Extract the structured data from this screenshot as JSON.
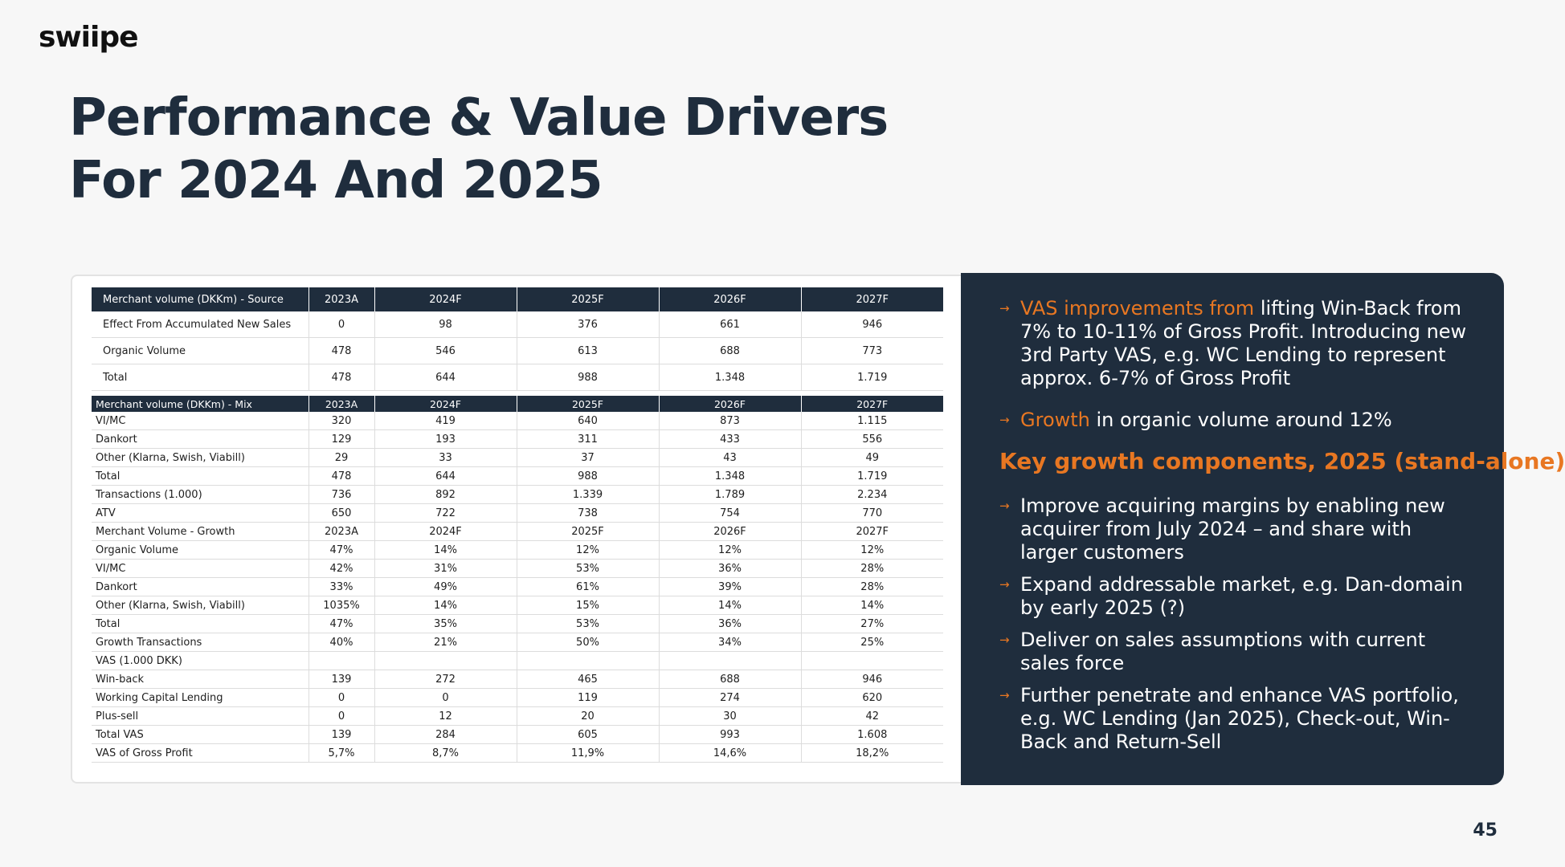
{
  "logo": "swiipe",
  "title": [
    "Performance & Value Drivers",
    "For 2024 And 2025"
  ],
  "table_source": {
    "headers": [
      "Merchant volume (DKKm) - Source",
      "2023A",
      "2024F",
      "2025F",
      "2026F",
      "2027F"
    ],
    "rows": [
      [
        "Effect From Accumulated New Sales",
        "0",
        "98",
        "376",
        "661",
        "946"
      ],
      [
        "Organic Volume",
        "478",
        "546",
        "613",
        "688",
        "773"
      ],
      [
        "Total",
        "478",
        "644",
        "988",
        "1.348",
        "1.719"
      ]
    ]
  },
  "table_mix": {
    "headers": [
      "Merchant volume (DKKm) - Mix",
      "2023A",
      "2024F",
      "2025F",
      "2026F",
      "2027F"
    ],
    "rows": [
      [
        "VI/MC",
        "320",
        "419",
        "640",
        "873",
        "1.115"
      ],
      [
        "Dankort",
        "129",
        "193",
        "311",
        "433",
        "556"
      ],
      [
        "Other (Klarna, Swish, Viabill)",
        "29",
        "33",
        "37",
        "43",
        "49"
      ],
      [
        "Total",
        "478",
        "644",
        "988",
        "1.348",
        "1.719"
      ],
      [
        "Transactions (1.000)",
        "736",
        "892",
        "1.339",
        "1.789",
        "2.234"
      ],
      [
        "ATV",
        "650",
        "722",
        "738",
        "754",
        "770"
      ],
      [
        "Merchant Volume - Growth",
        "2023A",
        "2024F",
        "2025F",
        "2026F",
        "2027F"
      ],
      [
        "Organic Volume",
        "47%",
        "14%",
        "12%",
        "12%",
        "12%"
      ],
      [
        "VI/MC",
        "42%",
        "31%",
        "53%",
        "36%",
        "28%"
      ],
      [
        "Dankort",
        "33%",
        "49%",
        "61%",
        "39%",
        "28%"
      ],
      [
        "Other (Klarna, Swish, Viabill)",
        "1035%",
        "14%",
        "15%",
        "14%",
        "14%"
      ],
      [
        "Total",
        "47%",
        "35%",
        "53%",
        "36%",
        "27%"
      ],
      [
        "Growth Transactions",
        "40%",
        "21%",
        "50%",
        "34%",
        "25%"
      ],
      [
        "VAS (1.000 DKK)",
        "",
        "",
        "",
        "",
        ""
      ],
      [
        "Win-back",
        "139",
        "272",
        "465",
        "688",
        "946"
      ],
      [
        "Working Capital Lending",
        "0",
        "0",
        "119",
        "274",
        "620"
      ],
      [
        "Plus-sell",
        "0",
        "12",
        "20",
        "30",
        "42"
      ],
      [
        "Total VAS",
        "139",
        "284",
        "605",
        "993",
        "1.608"
      ],
      [
        "VAS of Gross Profit",
        "5,7%",
        "8,7%",
        "11,9%",
        "14,6%",
        "18,2%"
      ]
    ]
  },
  "panel": {
    "bullet1": {
      "highlight": "VAS improvements from",
      "text": " lifting Win-Back from 7% to 10-11% of Gross Profit. Introducing new 3rd Party VAS, e.g. WC Lending to represent approx. 6-7% of Gross Profit"
    },
    "bullet2": {
      "highlight": "Growth",
      "text": " in organic volume around 12%"
    },
    "section_title": "Key growth components, 2025 (stand-alone)",
    "items": [
      "Improve acquiring margins by enabling new acquirer from July 2024 – and share with larger customers",
      "Expand addressable market, e.g. Dan-domain by early 2025 (?)",
      "Deliver on sales assumptions with current sales force",
      "Further penetrate and enhance VAS portfolio, e.g. WC Lending (Jan 2025), Check-out, Win-Back and Return-Sell"
    ],
    "arrow_icon": "→",
    "accent_color": "#e87722",
    "panel_color": "#1f2d3d"
  },
  "page_number": "45"
}
